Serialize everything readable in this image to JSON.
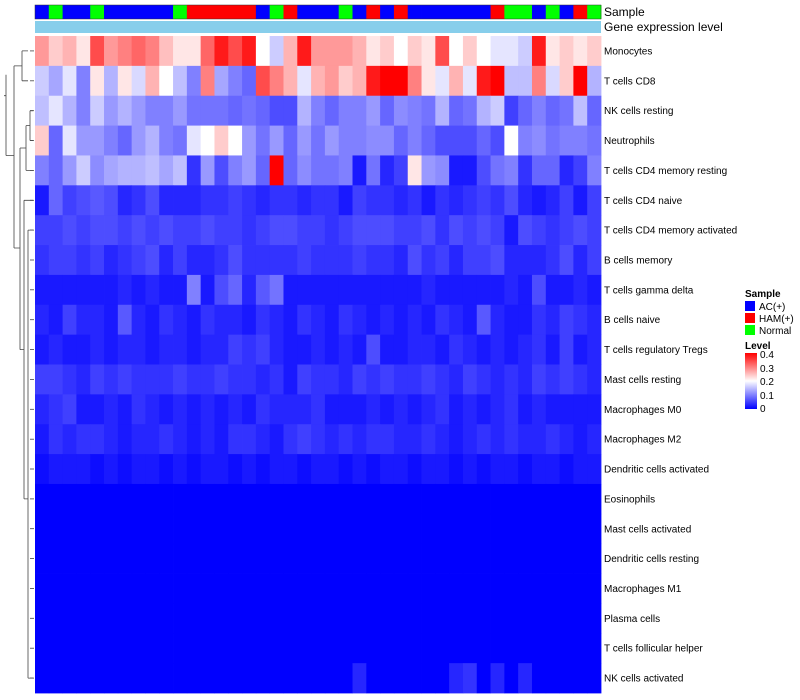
{
  "chart_data": {
    "type": "heatmap",
    "title": "",
    "column_annotations": [
      {
        "name": "Sample",
        "labels": [
          "AC(+)",
          "Normal",
          "AC(+)",
          "AC(+)",
          "Normal",
          "AC(+)",
          "AC(+)",
          "AC(+)",
          "AC(+)",
          "AC(+)",
          "Normal",
          "HAM(+)",
          "HAM(+)",
          "HAM(+)",
          "HAM(+)",
          "HAM(+)",
          "AC(+)",
          "Normal",
          "HAM(+)",
          "AC(+)",
          "AC(+)",
          "AC(+)",
          "Normal",
          "AC(+)",
          "HAM(+)",
          "AC(+)",
          "HAM(+)",
          "AC(+)",
          "AC(+)",
          "AC(+)",
          "AC(+)",
          "AC(+)",
          "AC(+)",
          "HAM(+)",
          "Normal",
          "Normal",
          "AC(+)",
          "Normal",
          "AC(+)",
          "HAM(+)",
          "Normal"
        ]
      },
      {
        "name": "Gene expression level"
      }
    ],
    "rows": [
      "Monocytes",
      "T cells CD8",
      "NK cells resting",
      "Neutrophils",
      "T cells CD4 memory resting",
      "T cells CD4 naive",
      "T cells CD4 memory activated",
      "B cells memory",
      "T cells gamma delta",
      "B cells naive",
      "T cells regulatory  Tregs",
      "Mast cells resting",
      "Macrophages M0",
      "Macrophages M2",
      "Dendritic cells activated",
      "Eosinophils",
      "Mast cells activated",
      "Dendritic cells resting",
      "Macrophages M1",
      "Plasma cells",
      "T cells follicular helper",
      "NK cells activated"
    ],
    "values": [
      [
        0.28,
        0.24,
        0.26,
        0.22,
        0.34,
        0.28,
        0.3,
        0.32,
        0.3,
        0.25,
        0.22,
        0.22,
        0.32,
        0.38,
        0.34,
        0.38,
        0.2,
        0.16,
        0.26,
        0.38,
        0.28,
        0.28,
        0.28,
        0.26,
        0.22,
        0.24,
        0.2,
        0.24,
        0.22,
        0.34,
        0.2,
        0.24,
        0.2,
        0.18,
        0.18,
        0.16,
        0.38,
        0.22,
        0.24,
        0.22,
        0.24
      ],
      [
        0.16,
        0.13,
        0.18,
        0.1,
        0.22,
        0.14,
        0.22,
        0.17,
        0.26,
        0.2,
        0.15,
        0.1,
        0.3,
        0.13,
        0.1,
        0.08,
        0.34,
        0.3,
        0.26,
        0.18,
        0.26,
        0.28,
        0.24,
        0.26,
        0.38,
        0.4,
        0.4,
        0.3,
        0.22,
        0.18,
        0.26,
        0.18,
        0.38,
        0.4,
        0.15,
        0.15,
        0.3,
        0.17,
        0.24,
        0.4,
        0.14
      ],
      [
        0.15,
        0.18,
        0.14,
        0.1,
        0.16,
        0.12,
        0.14,
        0.12,
        0.1,
        0.1,
        0.12,
        0.09,
        0.09,
        0.09,
        0.08,
        0.09,
        0.08,
        0.06,
        0.06,
        0.14,
        0.1,
        0.08,
        0.1,
        0.1,
        0.12,
        0.08,
        0.11,
        0.1,
        0.09,
        0.14,
        0.08,
        0.09,
        0.14,
        0.16,
        0.05,
        0.08,
        0.1,
        0.08,
        0.09,
        0.15,
        0.08
      ],
      [
        0.24,
        0.08,
        0.18,
        0.12,
        0.12,
        0.1,
        0.08,
        0.12,
        0.14,
        0.1,
        0.09,
        0.18,
        0.2,
        0.24,
        0.2,
        0.12,
        0.09,
        0.12,
        0.08,
        0.12,
        0.09,
        0.12,
        0.1,
        0.1,
        0.11,
        0.11,
        0.08,
        0.1,
        0.08,
        0.06,
        0.06,
        0.06,
        0.08,
        0.06,
        0.2,
        0.1,
        0.11,
        0.09,
        0.1,
        0.1,
        0.09
      ],
      [
        0.1,
        0.08,
        0.12,
        0.16,
        0.11,
        0.13,
        0.14,
        0.14,
        0.15,
        0.13,
        0.15,
        0.04,
        0.12,
        0.06,
        0.1,
        0.12,
        0.08,
        0.4,
        0.08,
        0.11,
        0.09,
        0.09,
        0.1,
        0.02,
        0.09,
        0.03,
        0.05,
        0.22,
        0.12,
        0.11,
        0.02,
        0.02,
        0.06,
        0.09,
        0.1,
        0.04,
        0.08,
        0.08,
        0.03,
        0.05,
        0.1
      ],
      [
        0.02,
        0.08,
        0.05,
        0.06,
        0.07,
        0.06,
        0.03,
        0.04,
        0.06,
        0.03,
        0.03,
        0.03,
        0.04,
        0.04,
        0.05,
        0.04,
        0.03,
        0.04,
        0.04,
        0.03,
        0.04,
        0.04,
        0.02,
        0.05,
        0.04,
        0.04,
        0.03,
        0.04,
        0.02,
        0.04,
        0.03,
        0.04,
        0.05,
        0.04,
        0.06,
        0.03,
        0.02,
        0.03,
        0.05,
        0.02,
        0.05
      ],
      [
        0.05,
        0.05,
        0.06,
        0.05,
        0.06,
        0.06,
        0.05,
        0.06,
        0.05,
        0.06,
        0.05,
        0.05,
        0.06,
        0.05,
        0.05,
        0.04,
        0.05,
        0.06,
        0.06,
        0.05,
        0.05,
        0.04,
        0.05,
        0.06,
        0.06,
        0.06,
        0.05,
        0.05,
        0.06,
        0.04,
        0.06,
        0.05,
        0.06,
        0.05,
        0.02,
        0.06,
        0.05,
        0.04,
        0.05,
        0.06,
        0.05
      ],
      [
        0.04,
        0.05,
        0.05,
        0.04,
        0.05,
        0.03,
        0.04,
        0.05,
        0.06,
        0.03,
        0.05,
        0.03,
        0.03,
        0.04,
        0.06,
        0.04,
        0.04,
        0.04,
        0.04,
        0.05,
        0.04,
        0.04,
        0.04,
        0.05,
        0.04,
        0.04,
        0.03,
        0.06,
        0.04,
        0.05,
        0.03,
        0.05,
        0.05,
        0.06,
        0.03,
        0.03,
        0.03,
        0.04,
        0.06,
        0.03,
        0.05
      ],
      [
        0.02,
        0.02,
        0.02,
        0.02,
        0.02,
        0.02,
        0.03,
        0.02,
        0.03,
        0.02,
        0.02,
        0.1,
        0.02,
        0.06,
        0.08,
        0.03,
        0.07,
        0.09,
        0.02,
        0.02,
        0.02,
        0.02,
        0.02,
        0.02,
        0.02,
        0.02,
        0.02,
        0.02,
        0.03,
        0.02,
        0.02,
        0.02,
        0.02,
        0.02,
        0.03,
        0.02,
        0.06,
        0.02,
        0.02,
        0.03,
        0.02
      ],
      [
        0.03,
        0.02,
        0.05,
        0.03,
        0.03,
        0.02,
        0.07,
        0.03,
        0.02,
        0.04,
        0.03,
        0.02,
        0.04,
        0.03,
        0.03,
        0.02,
        0.04,
        0.03,
        0.02,
        0.04,
        0.03,
        0.02,
        0.04,
        0.03,
        0.02,
        0.03,
        0.02,
        0.03,
        0.02,
        0.04,
        0.03,
        0.02,
        0.07,
        0.03,
        0.02,
        0.02,
        0.04,
        0.03,
        0.05,
        0.04,
        0.03
      ],
      [
        0.02,
        0.03,
        0.02,
        0.02,
        0.03,
        0.02,
        0.03,
        0.03,
        0.02,
        0.03,
        0.03,
        0.02,
        0.03,
        0.03,
        0.05,
        0.04,
        0.05,
        0.03,
        0.02,
        0.02,
        0.03,
        0.02,
        0.03,
        0.02,
        0.06,
        0.02,
        0.02,
        0.03,
        0.03,
        0.02,
        0.04,
        0.03,
        0.02,
        0.03,
        0.02,
        0.03,
        0.04,
        0.02,
        0.05,
        0.02,
        0.03
      ],
      [
        0.05,
        0.05,
        0.04,
        0.03,
        0.05,
        0.04,
        0.05,
        0.04,
        0.04,
        0.04,
        0.05,
        0.04,
        0.04,
        0.05,
        0.04,
        0.04,
        0.03,
        0.04,
        0.02,
        0.05,
        0.04,
        0.04,
        0.03,
        0.05,
        0.04,
        0.05,
        0.04,
        0.04,
        0.05,
        0.04,
        0.03,
        0.05,
        0.04,
        0.03,
        0.04,
        0.03,
        0.05,
        0.04,
        0.05,
        0.04,
        0.03
      ],
      [
        0.03,
        0.04,
        0.05,
        0.02,
        0.02,
        0.03,
        0.02,
        0.04,
        0.03,
        0.02,
        0.03,
        0.02,
        0.03,
        0.02,
        0.03,
        0.02,
        0.04,
        0.03,
        0.03,
        0.03,
        0.04,
        0.02,
        0.02,
        0.02,
        0.03,
        0.02,
        0.03,
        0.02,
        0.03,
        0.04,
        0.02,
        0.03,
        0.02,
        0.03,
        0.04,
        0.02,
        0.03,
        0.02,
        0.02,
        0.02,
        0.02
      ],
      [
        0.02,
        0.04,
        0.03,
        0.04,
        0.04,
        0.03,
        0.02,
        0.03,
        0.03,
        0.04,
        0.03,
        0.02,
        0.03,
        0.02,
        0.04,
        0.04,
        0.03,
        0.02,
        0.04,
        0.05,
        0.04,
        0.03,
        0.04,
        0.03,
        0.04,
        0.04,
        0.03,
        0.03,
        0.04,
        0.03,
        0.02,
        0.03,
        0.04,
        0.03,
        0.04,
        0.03,
        0.03,
        0.04,
        0.03,
        0.02,
        0.03
      ],
      [
        0.01,
        0.02,
        0.02,
        0.02,
        0.01,
        0.02,
        0.01,
        0.02,
        0.02,
        0.01,
        0.02,
        0.01,
        0.02,
        0.02,
        0.01,
        0.02,
        0.01,
        0.02,
        0.02,
        0.01,
        0.02,
        0.02,
        0.01,
        0.02,
        0.01,
        0.02,
        0.02,
        0.01,
        0.02,
        0.02,
        0.01,
        0.02,
        0.01,
        0.02,
        0.02,
        0.01,
        0.02,
        0.02,
        0.01,
        0.02,
        0.02
      ],
      [
        0,
        0,
        0,
        0,
        0,
        0,
        0,
        0,
        0,
        0,
        0,
        0,
        0,
        0,
        0,
        0,
        0,
        0,
        0,
        0,
        0,
        0,
        0,
        0,
        0,
        0,
        0,
        0,
        0,
        0,
        0,
        0,
        0,
        0,
        0,
        0,
        0,
        0,
        0,
        0,
        0
      ],
      [
        0,
        0,
        0,
        0,
        0,
        0,
        0,
        0,
        0,
        0,
        0,
        0,
        0,
        0,
        0,
        0,
        0,
        0,
        0,
        0,
        0,
        0,
        0,
        0,
        0,
        0,
        0,
        0,
        0,
        0,
        0,
        0,
        0,
        0,
        0,
        0,
        0,
        0,
        0,
        0,
        0
      ],
      [
        0,
        0,
        0,
        0,
        0,
        0,
        0,
        0,
        0,
        0,
        0,
        0,
        0,
        0,
        0,
        0,
        0,
        0,
        0,
        0,
        0,
        0,
        0,
        0,
        0,
        0,
        0,
        0,
        0,
        0,
        0,
        0,
        0,
        0,
        0,
        0,
        0,
        0,
        0,
        0,
        0
      ],
      [
        0,
        0,
        0,
        0,
        0,
        0,
        0,
        0,
        0,
        0,
        0,
        0,
        0,
        0,
        0,
        0,
        0,
        0,
        0,
        0,
        0,
        0,
        0,
        0,
        0,
        0,
        0,
        0,
        0,
        0,
        0,
        0,
        0,
        0,
        0,
        0,
        0,
        0,
        0,
        0,
        0
      ],
      [
        0,
        0,
        0,
        0,
        0,
        0,
        0,
        0,
        0,
        0,
        0,
        0,
        0,
        0,
        0,
        0,
        0,
        0,
        0,
        0,
        0,
        0,
        0,
        0,
        0,
        0,
        0,
        0,
        0,
        0,
        0,
        0,
        0,
        0,
        0,
        0,
        0,
        0,
        0,
        0,
        0
      ],
      [
        0,
        0,
        0,
        0,
        0,
        0,
        0,
        0,
        0,
        0,
        0,
        0,
        0,
        0,
        0,
        0,
        0,
        0,
        0,
        0,
        0,
        0,
        0,
        0,
        0,
        0,
        0,
        0,
        0,
        0,
        0,
        0,
        0,
        0,
        0,
        0,
        0,
        0,
        0,
        0,
        0
      ],
      [
        0,
        0,
        0,
        0,
        0,
        0,
        0,
        0,
        0,
        0,
        0,
        0,
        0,
        0,
        0,
        0,
        0,
        0,
        0,
        0,
        0,
        0,
        0,
        0.03,
        0,
        0,
        0,
        0,
        0,
        0,
        0.03,
        0.04,
        0,
        0.03,
        0,
        0.03,
        0,
        0,
        0,
        0,
        0
      ]
    ],
    "color_scale": {
      "min": 0,
      "max": 0.4,
      "low": "#0000ff",
      "mid": "#ffffff",
      "high": "#ff0000",
      "mid_value": 0.2
    },
    "legend": {
      "sample": {
        "title": "Sample",
        "entries": [
          {
            "label": "AC(+)",
            "color": "#0000ff"
          },
          {
            "label": "HAM(+)",
            "color": "#ff0000"
          },
          {
            "label": "Normal",
            "color": "#00ff00"
          }
        ]
      },
      "level": {
        "title": "Level",
        "ticks": [
          "0.4",
          "0.3",
          "0.2",
          "0.1",
          "0"
        ]
      }
    },
    "expression_bar_color": "#87ceeb",
    "dendrogram": true
  }
}
